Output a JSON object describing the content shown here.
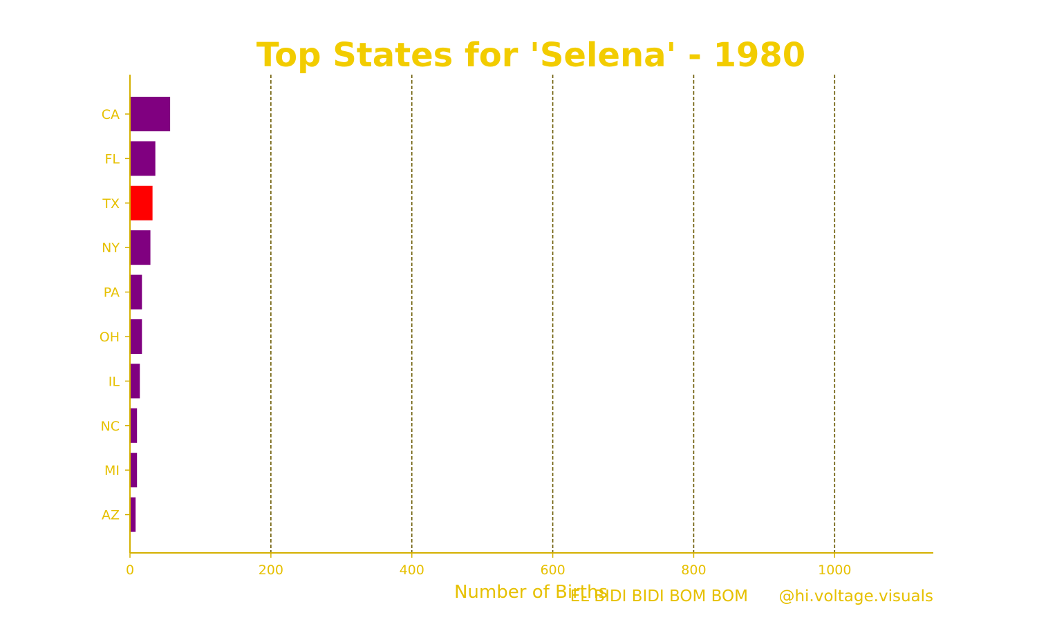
{
  "chart_data": {
    "type": "bar",
    "orientation": "horizontal",
    "title": "Top States for 'Selena' - 1980",
    "xlabel": "Number of Births",
    "ylabel": "",
    "categories": [
      "CA",
      "FL",
      "TX",
      "NY",
      "PA",
      "OH",
      "IL",
      "NC",
      "MI",
      "AZ"
    ],
    "values": [
      57,
      36,
      32,
      29,
      17,
      17,
      14,
      10,
      10,
      8
    ],
    "highlight": "TX",
    "xlim": [
      0,
      1140
    ],
    "xticks": [
      0,
      200,
      400,
      600,
      800,
      1000
    ],
    "xtick_labels": [
      "0",
      "200",
      "400",
      "600",
      "800",
      "1000"
    ],
    "grid": "vertical dashed",
    "annotations": [
      "EL BIDI BIDI BOM BOM",
      "@hi.voltage.visuals"
    ],
    "colors": {
      "bar": "#800080",
      "highlight_bar": "#ff0000",
      "text": "#e6c000",
      "title": "#f2cc00",
      "axis": "#d4b000",
      "grid": "#6b5a00"
    }
  }
}
